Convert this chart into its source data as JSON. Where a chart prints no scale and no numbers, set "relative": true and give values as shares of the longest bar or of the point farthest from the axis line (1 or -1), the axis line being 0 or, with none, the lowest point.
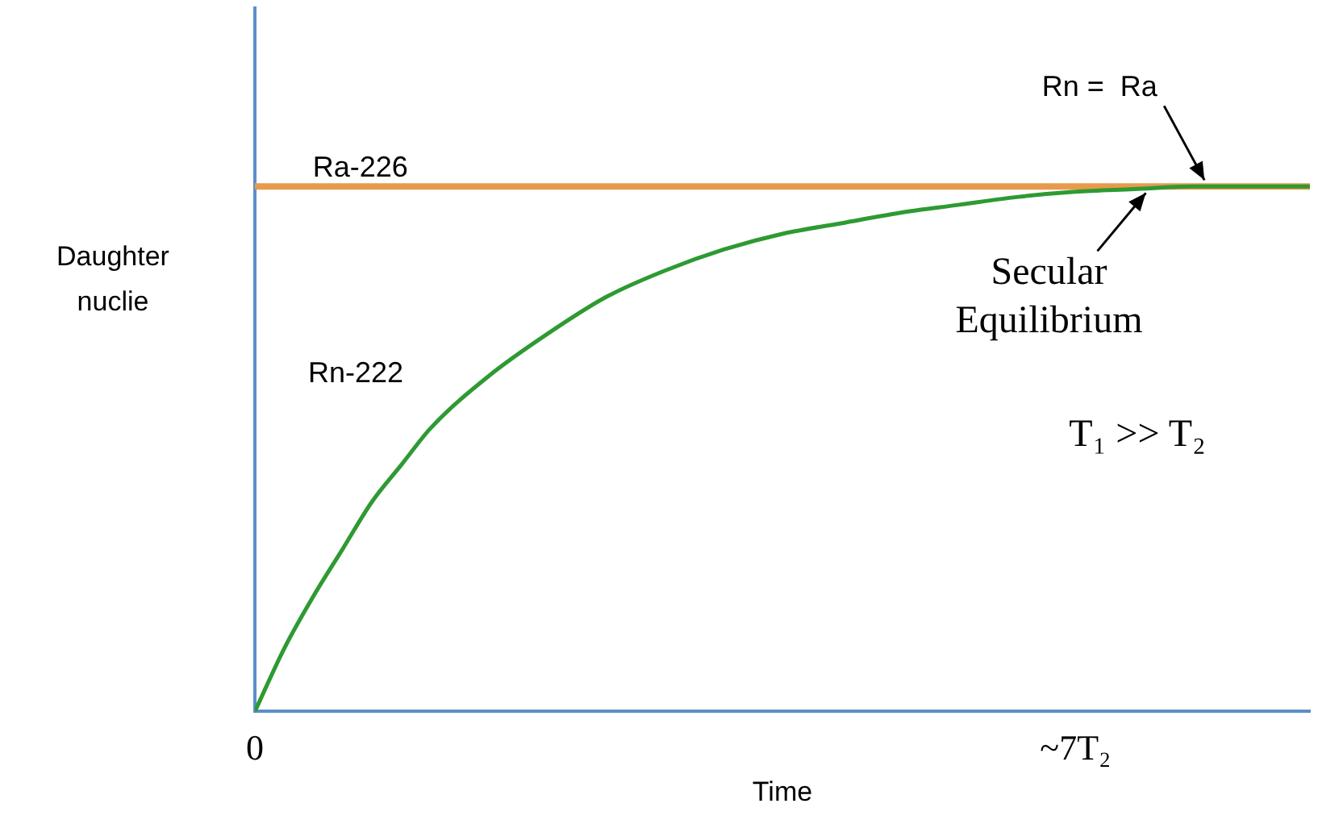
{
  "chart_data": {
    "type": "line",
    "relative": true,
    "xlabel": "Time",
    "ylabel": "Daughter nuclie",
    "xlim": [
      0,
      9
    ],
    "xticks": [
      0,
      {
        "value": 7,
        "label": "~7T₂"
      }
    ],
    "grid": false,
    "legend": false,
    "marker": "none",
    "line_style": "solid",
    "series": [
      {
        "color": "#e89a4c",
        "x": [
          0,
          9
        ],
        "values": [
          1,
          1
        ]
      },
      {
        "color": "#2e9a32",
        "x": [
          0,
          0.25,
          0.5,
          0.75,
          1,
          1.25,
          1.5,
          2,
          2.5,
          3,
          3.5,
          4,
          4.5,
          5,
          5.5,
          6,
          6.5,
          7,
          7.5,
          8,
          8.5,
          9
        ],
        "values": [
          0,
          0.12,
          0.22,
          0.31,
          0.4,
          0.47,
          0.54,
          0.64,
          0.72,
          0.79,
          0.84,
          0.88,
          0.91,
          0.93,
          0.95,
          0.965,
          0.98,
          0.99,
          0.995,
          1,
          1,
          1
        ]
      }
    ],
    "annotations": [
      {
        "text": "Ra-226",
        "x": 0.9,
        "y": 1
      },
      "Rn-222",
      {
        "text": "Rn =  Ra",
        "x": 8.1,
        "y": 1
      },
      {
        "text": "Secular\nEquilibrium",
        "x": 7.6,
        "y": 1
      },
      "T₁ >> T₂"
    ]
  }
}
